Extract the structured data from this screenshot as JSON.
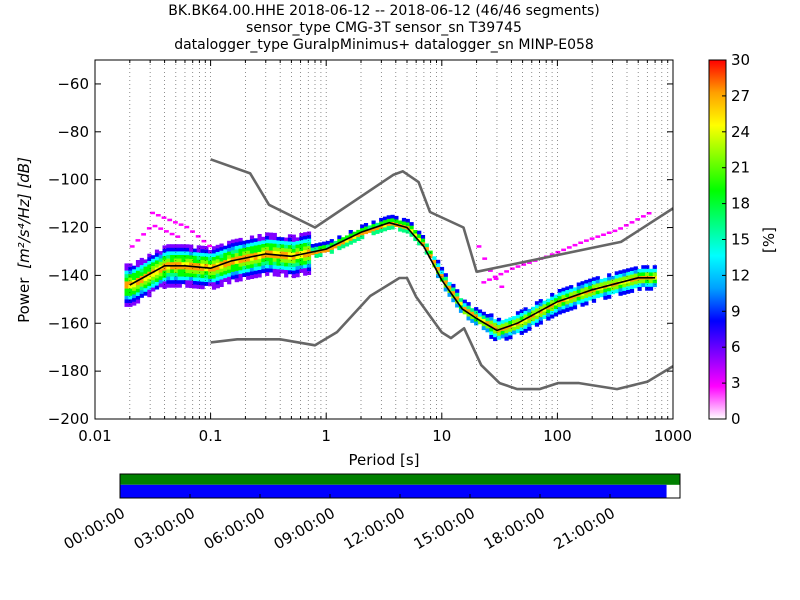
{
  "chart_data": {
    "type": "heatmap",
    "title_lines": [
      "BK.BK64.00.HHE   2018-06-12 -- 2018-06-12  (46/46 segments)",
      "sensor_type CMG-3T sensor_sn T39745",
      "datalogger_type GuralpMinimus+ datalogger_sn MINP-E058"
    ],
    "xlabel": "Period [s]",
    "ylabel_text": "Power",
    "ylabel_unit": "[m²/s⁴/Hz] [dB]",
    "xscale": "log",
    "xlim": [
      0.01,
      1000
    ],
    "ylim": [
      -200,
      -50
    ],
    "x_tick_labels": [
      "0.01",
      "0.1",
      "1",
      "10",
      "100",
      "1000"
    ],
    "x_ticks": [
      0.01,
      0.1,
      1,
      10,
      100,
      1000
    ],
    "y_ticks": [
      -60,
      -80,
      -100,
      -120,
      -140,
      -160,
      -180,
      -200
    ],
    "y_tick_labels": [
      "−60",
      "−80",
      "−100",
      "−120",
      "−140",
      "−160",
      "−180",
      "−200"
    ],
    "grid": "dotted vertical at period decades",
    "colorbar": {
      "label": "[%]",
      "ticks": [
        0,
        3,
        6,
        9,
        12,
        15,
        18,
        21,
        24,
        27,
        30
      ],
      "tick_labels": [
        "0",
        "3",
        "6",
        "9",
        "12",
        "15",
        "18",
        "21",
        "24",
        "27",
        "30"
      ],
      "range": [
        0,
        30
      ],
      "colors": [
        "#ffffff",
        "#ff00ff",
        "#8000ff",
        "#0000ff",
        "#00a0ff",
        "#00ffff",
        "#00ff80",
        "#00ff00",
        "#80ff00",
        "#ffff00",
        "#ffa000",
        "#ff0000"
      ]
    },
    "series": [
      {
        "name": "NHNM",
        "color": "#666666",
        "x": [
          0.1,
          0.22,
          0.32,
          0.8,
          3.8,
          4.6,
          6.3,
          7.9,
          15.4,
          20,
          354.8,
          1000
        ],
        "y": [
          -91.5,
          -97.4,
          -110.5,
          -120,
          -98,
          -96.5,
          -101,
          -113.5,
          -120,
          -138.5,
          -126,
          -112
        ]
      },
      {
        "name": "NLNM",
        "color": "#666666",
        "x": [
          0.1,
          0.17,
          0.4,
          0.8,
          1.24,
          2.4,
          4.3,
          5,
          6,
          10,
          12,
          15.6,
          21.9,
          31.6,
          45,
          70,
          101,
          154,
          328,
          600,
          1000
        ],
        "y": [
          -168,
          -166.7,
          -166.7,
          -169.2,
          -163.7,
          -148.6,
          -141.1,
          -141.1,
          -149,
          -163.8,
          -166.2,
          -162.1,
          -177.5,
          -185,
          -187.5,
          -187.5,
          -185,
          -185,
          -187.5,
          -184.4,
          -178
        ]
      },
      {
        "name": "mode",
        "color": "#000000",
        "x": [
          0.02,
          0.04,
          0.06,
          0.1,
          0.15,
          0.3,
          0.5,
          1,
          2,
          3.5,
          5,
          7,
          10,
          15,
          20,
          30,
          45,
          70,
          100,
          200,
          500,
          700
        ],
        "y": [
          -144,
          -136,
          -136,
          -137,
          -134,
          -131,
          -132,
          -129,
          -122,
          -118,
          -120,
          -128,
          -142,
          -154,
          -158,
          -163,
          -160,
          -155,
          -151,
          -146,
          -141,
          -141
        ]
      }
    ],
    "segment_axis": {
      "tick_labels": [
        "00:00:00",
        "03:00:00",
        "06:00:00",
        "09:00:00",
        "12:00:00",
        "15:00:00",
        "18:00:00",
        "21:00:00"
      ],
      "data_coverage_fraction": 0.976,
      "processed_fraction": 1.0,
      "colors": {
        "processed": "#008000",
        "coverage": "#0000ff"
      }
    }
  }
}
